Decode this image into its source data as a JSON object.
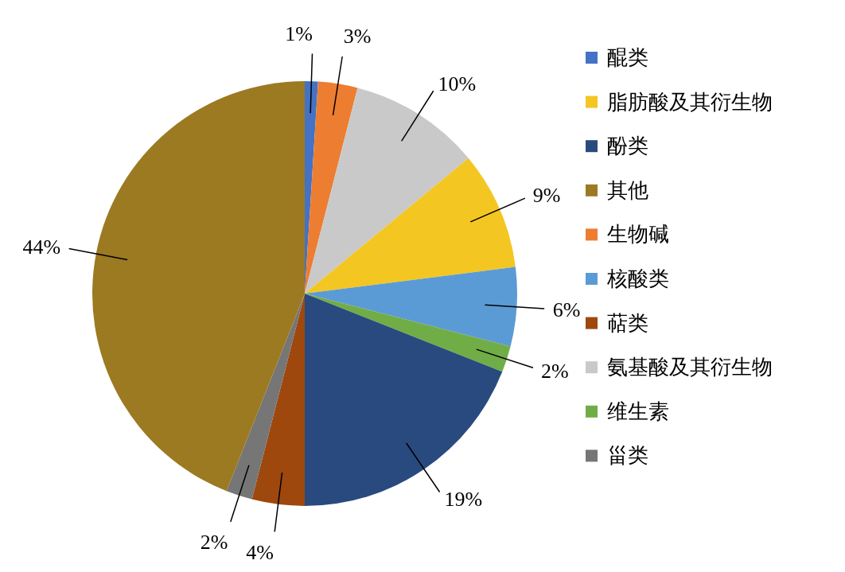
{
  "chart_data": {
    "type": "pie",
    "categories": [
      "醌类",
      "生物碱",
      "氨基酸及其衍生物",
      "脂肪酸及其衍生物",
      "核酸类",
      "维生素",
      "酚类",
      "萜类",
      "甾类",
      "其他"
    ],
    "values": [
      1,
      3,
      10,
      9,
      6,
      2,
      19,
      4,
      2,
      44
    ],
    "value_labels": [
      "1%",
      "3%",
      "10%",
      "9%",
      "6%",
      "2%",
      "19%",
      "4%",
      "2%",
      "44%"
    ],
    "colors": [
      "#4472c4",
      "#ed7d31",
      "#c9c9c9",
      "#f4c622",
      "#5b9bd5",
      "#70ad47",
      "#294a7e",
      "#9e480e",
      "#767676",
      "#9c7a22"
    ],
    "legend": "right"
  }
}
